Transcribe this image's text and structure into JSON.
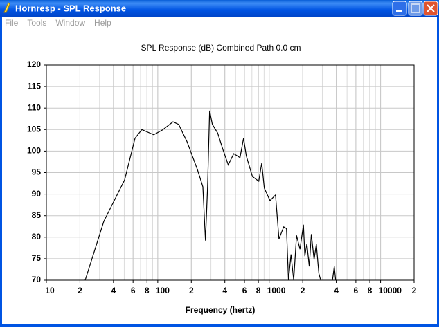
{
  "window": {
    "title": "Hornresp - SPL Response",
    "menu": [
      "File",
      "Tools",
      "Window",
      "Help"
    ]
  },
  "chart_data": {
    "type": "line",
    "title": "SPL Response (dB)   Combined   Path 0.0 cm",
    "x_label": "Frequency (hertz)",
    "log_x": true,
    "grid": true,
    "color": "#000000",
    "xlim": [
      10,
      20000
    ],
    "xticks": [
      10,
      {
        "value": 20,
        "label": "2"
      },
      {
        "value": 40,
        "label": "4"
      },
      {
        "value": 60,
        "label": "6"
      },
      {
        "value": 80,
        "label": "8"
      },
      100,
      {
        "value": 200,
        "label": "2"
      },
      {
        "value": 400,
        "label": "4"
      },
      {
        "value": 600,
        "label": "6"
      },
      {
        "value": 800,
        "label": "8"
      },
      1000,
      {
        "value": 2000,
        "label": "2"
      },
      {
        "value": 4000,
        "label": "4"
      },
      {
        "value": 6000,
        "label": "6"
      },
      {
        "value": 8000,
        "label": "8"
      },
      10000,
      {
        "value": 20000,
        "label": "2"
      }
    ],
    "ylim": [
      70,
      120
    ],
    "yticks": [
      70,
      75,
      80,
      85,
      90,
      95,
      100,
      105,
      110,
      115,
      120
    ],
    "x": [
      22.3,
      32.8,
      50.4,
      62.5,
      72,
      92,
      110,
      137,
      154,
      183,
      227,
      254,
      268,
      280,
      292,
      309,
      345,
      383,
      429,
      481,
      547,
      589,
      623,
      707,
      806,
      857,
      904,
      1017,
      1140,
      1224,
      1350,
      1430,
      1490,
      1570,
      1660,
      1760,
      1890,
      2030,
      2090,
      2180,
      2290,
      2390,
      2530,
      2650,
      2790,
      2900,
      3300,
      3700,
      3840,
      3950
    ],
    "values": [
      70,
      83.7,
      93.3,
      103,
      105,
      103.8,
      104.9,
      106.8,
      106.2,
      102.2,
      95.7,
      91.7,
      79.2,
      91.7,
      109.4,
      106.2,
      104.2,
      100.5,
      96.8,
      99.4,
      98.5,
      103,
      98.9,
      94.1,
      93,
      97.2,
      91.4,
      88.5,
      89.8,
      79.6,
      82.4,
      82,
      70,
      76,
      70,
      80.4,
      77.2,
      82.9,
      75.6,
      78.5,
      73.2,
      80.7,
      74.8,
      78.4,
      71.6,
      70,
      null,
      70,
      73.2,
      70
    ]
  }
}
